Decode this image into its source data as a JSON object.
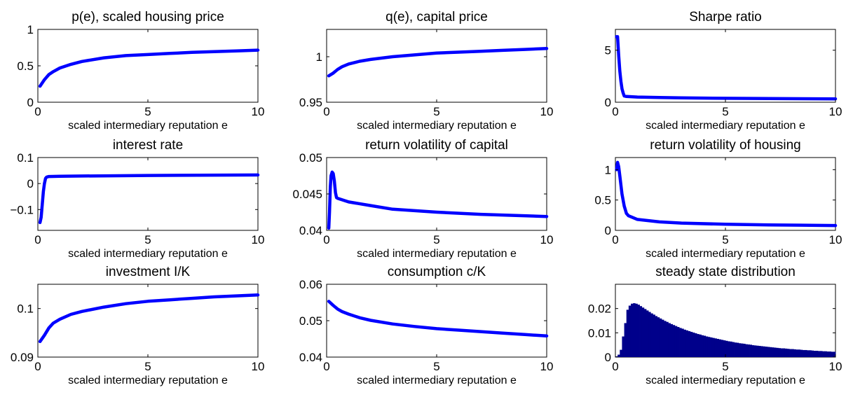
{
  "colors": {
    "line": "#0000ff",
    "bar": "#00008b",
    "axis": "#000000"
  },
  "chart_data": [
    {
      "type": "line",
      "title": "p(e), scaled housing price",
      "xlabel": "scaled intermediary reputation e",
      "xlim": [
        0,
        10
      ],
      "ylim": [
        0,
        1
      ],
      "xticks": [
        0,
        5,
        10
      ],
      "yticks": [
        0,
        0.5,
        1
      ],
      "xtick_labels": [
        "0",
        "5",
        "10"
      ],
      "ytick_labels": [
        "0",
        "0.5",
        "1"
      ],
      "series": [
        {
          "x": [
            0.1,
            0.3,
            0.5,
            0.7,
            1,
            1.5,
            2,
            3,
            4,
            5,
            6,
            7,
            8,
            9,
            10
          ],
          "values": [
            0.22,
            0.31,
            0.38,
            0.42,
            0.47,
            0.52,
            0.56,
            0.61,
            0.64,
            0.655,
            0.67,
            0.685,
            0.695,
            0.705,
            0.715
          ]
        }
      ]
    },
    {
      "type": "line",
      "title": "q(e), capital price",
      "xlabel": "scaled intermediary reputation e",
      "xlim": [
        0,
        10
      ],
      "ylim": [
        0.95,
        1.03
      ],
      "xticks": [
        0,
        5,
        10
      ],
      "yticks": [
        0.95,
        1
      ],
      "xtick_labels": [
        "0",
        "5",
        "10"
      ],
      "ytick_labels": [
        "0.95",
        "1"
      ],
      "series": [
        {
          "x": [
            0.1,
            0.3,
            0.5,
            0.7,
            1,
            1.5,
            2,
            3,
            4,
            5,
            6,
            7,
            8,
            9,
            10
          ],
          "values": [
            0.979,
            0.982,
            0.986,
            0.989,
            0.992,
            0.995,
            0.997,
            1.0,
            1.002,
            1.004,
            1.005,
            1.006,
            1.007,
            1.008,
            1.009
          ]
        }
      ]
    },
    {
      "type": "line",
      "title": "Sharpe ratio",
      "xlabel": "scaled intermediary reputation e",
      "xlim": [
        0,
        10
      ],
      "ylim": [
        0,
        7
      ],
      "xticks": [
        0,
        5,
        10
      ],
      "yticks": [
        0,
        5
      ],
      "xtick_labels": [
        "0",
        "5",
        "10"
      ],
      "ytick_labels": [
        "0",
        "5"
      ],
      "series": [
        {
          "x": [
            0.05,
            0.1,
            0.15,
            0.2,
            0.25,
            0.3,
            0.35,
            0.4,
            0.5,
            1,
            2,
            3,
            5,
            7,
            10
          ],
          "values": [
            6.3,
            6.3,
            4.5,
            3.0,
            2.0,
            1.3,
            0.9,
            0.6,
            0.55,
            0.5,
            0.45,
            0.42,
            0.38,
            0.35,
            0.32
          ]
        }
      ]
    },
    {
      "type": "line",
      "title": "interest rate",
      "xlabel": "scaled intermediary reputation e",
      "xlim": [
        0,
        10
      ],
      "ylim": [
        -0.18,
        0.1
      ],
      "xticks": [
        0,
        5,
        10
      ],
      "yticks": [
        -0.1,
        0,
        0.1
      ],
      "xtick_labels": [
        "0",
        "5",
        "10"
      ],
      "ytick_labels": [
        "−0.1",
        "0",
        "0.1"
      ],
      "series": [
        {
          "x": [
            0.1,
            0.15,
            0.2,
            0.25,
            0.3,
            0.35,
            0.4,
            0.5,
            1,
            2,
            5,
            10
          ],
          "values": [
            -0.15,
            -0.13,
            -0.08,
            -0.03,
            0.0,
            0.02,
            0.025,
            0.027,
            0.028,
            0.029,
            0.031,
            0.033
          ]
        }
      ]
    },
    {
      "type": "line",
      "title": "return volatility of capital",
      "xlabel": "scaled intermediary reputation e",
      "xlim": [
        0,
        10
      ],
      "ylim": [
        0.04,
        0.05
      ],
      "xticks": [
        0,
        5,
        10
      ],
      "yticks": [
        0.04,
        0.045,
        0.05
      ],
      "xtick_labels": [
        "0",
        "5",
        "10"
      ],
      "ytick_labels": [
        "0.04",
        "0.045",
        "0.05"
      ],
      "series": [
        {
          "x": [
            0.1,
            0.13,
            0.17,
            0.2,
            0.25,
            0.3,
            0.35,
            0.4,
            0.45,
            0.5,
            1,
            2,
            3,
            5,
            7,
            10
          ],
          "values": [
            0.0403,
            0.0425,
            0.046,
            0.0475,
            0.048,
            0.0478,
            0.0468,
            0.0452,
            0.0445,
            0.0444,
            0.0439,
            0.0434,
            0.0429,
            0.0425,
            0.0422,
            0.0419
          ]
        }
      ]
    },
    {
      "type": "line",
      "title": "return volatility of housing",
      "xlabel": "scaled intermediary reputation e",
      "xlim": [
        0,
        10
      ],
      "ylim": [
        0,
        1.2
      ],
      "xticks": [
        0,
        5,
        10
      ],
      "yticks": [
        0,
        0.5,
        1
      ],
      "xtick_labels": [
        "0",
        "5",
        "10"
      ],
      "ytick_labels": [
        "0",
        "0.5",
        "1"
      ],
      "series": [
        {
          "x": [
            0.05,
            0.1,
            0.15,
            0.2,
            0.3,
            0.4,
            0.5,
            0.6,
            1,
            2,
            3,
            5,
            7,
            10
          ],
          "values": [
            1.0,
            1.12,
            1.05,
            0.9,
            0.6,
            0.4,
            0.28,
            0.24,
            0.18,
            0.14,
            0.12,
            0.1,
            0.09,
            0.08
          ]
        }
      ]
    },
    {
      "type": "line",
      "title": "investment I/K",
      "xlabel": "scaled intermediary reputation e",
      "xlim": [
        0,
        10
      ],
      "ylim": [
        0.09,
        0.105
      ],
      "xticks": [
        0,
        5,
        10
      ],
      "yticks": [
        0.09,
        0.1
      ],
      "xtick_labels": [
        "0",
        "5",
        "10"
      ],
      "ytick_labels": [
        "0.09",
        "0.1"
      ],
      "series": [
        {
          "x": [
            0.1,
            0.3,
            0.5,
            0.7,
            1,
            1.5,
            2,
            3,
            4,
            5,
            6,
            7,
            8,
            9,
            10
          ],
          "values": [
            0.0932,
            0.0945,
            0.096,
            0.097,
            0.0978,
            0.0988,
            0.0994,
            0.1003,
            0.101,
            0.1015,
            0.1018,
            0.1021,
            0.1024,
            0.1026,
            0.1028
          ]
        }
      ]
    },
    {
      "type": "line",
      "title": "consumption c/K",
      "xlabel": "scaled intermediary reputation e",
      "xlim": [
        0,
        10
      ],
      "ylim": [
        0.04,
        0.06
      ],
      "xticks": [
        0,
        5,
        10
      ],
      "yticks": [
        0.04,
        0.05,
        0.06
      ],
      "xtick_labels": [
        "0",
        "5",
        "10"
      ],
      "ytick_labels": [
        "0.04",
        "0.05",
        "0.06"
      ],
      "series": [
        {
          "x": [
            0.1,
            0.3,
            0.5,
            0.7,
            1,
            1.5,
            2,
            3,
            4,
            5,
            6,
            7,
            8,
            9,
            10
          ],
          "values": [
            0.0553,
            0.0542,
            0.0532,
            0.0525,
            0.0518,
            0.0508,
            0.0501,
            0.0491,
            0.0484,
            0.0478,
            0.0474,
            0.047,
            0.0466,
            0.0462,
            0.0458
          ]
        }
      ]
    },
    {
      "type": "bar",
      "title": "steady state distribution",
      "xlabel": "scaled intermediary reputation e",
      "xlim": [
        0,
        10
      ],
      "ylim": [
        0,
        0.03
      ],
      "xticks": [
        0,
        5,
        10
      ],
      "yticks": [
        0,
        0.01,
        0.02
      ],
      "xtick_labels": [
        "0",
        "5",
        "10"
      ],
      "ytick_labels": [
        "0",
        "0.01",
        "0.02"
      ],
      "bin_width": 0.1,
      "values": [
        0.0003,
        0.001,
        0.003,
        0.0085,
        0.014,
        0.0195,
        0.0212,
        0.022,
        0.0222,
        0.022,
        0.0216,
        0.021,
        0.0204,
        0.0198,
        0.0192,
        0.0186,
        0.018,
        0.0175,
        0.0169,
        0.0164,
        0.0159,
        0.0154,
        0.0149,
        0.0145,
        0.014,
        0.0136,
        0.0132,
        0.0128,
        0.0124,
        0.012,
        0.0117,
        0.0113,
        0.011,
        0.0107,
        0.0104,
        0.0101,
        0.0098,
        0.0095,
        0.0093,
        0.009,
        0.0088,
        0.0085,
        0.0083,
        0.0081,
        0.0079,
        0.0077,
        0.0075,
        0.0073,
        0.0071,
        0.0069,
        0.0067,
        0.0065,
        0.0064,
        0.0062,
        0.006,
        0.0059,
        0.0057,
        0.0056,
        0.0055,
        0.0053,
        0.0052,
        0.0051,
        0.0049,
        0.0048,
        0.0047,
        0.0046,
        0.0045,
        0.0044,
        0.0043,
        0.0042,
        0.0041,
        0.004,
        0.0039,
        0.0038,
        0.0037,
        0.0036,
        0.0036,
        0.0035,
        0.0034,
        0.0033,
        0.0033,
        0.0032,
        0.0031,
        0.0031,
        0.003,
        0.0029,
        0.0029,
        0.0028,
        0.0028,
        0.0027,
        0.0026,
        0.0026,
        0.0025,
        0.0025,
        0.0024,
        0.0024,
        0.0023,
        0.0023,
        0.0022,
        0.0022
      ]
    }
  ]
}
